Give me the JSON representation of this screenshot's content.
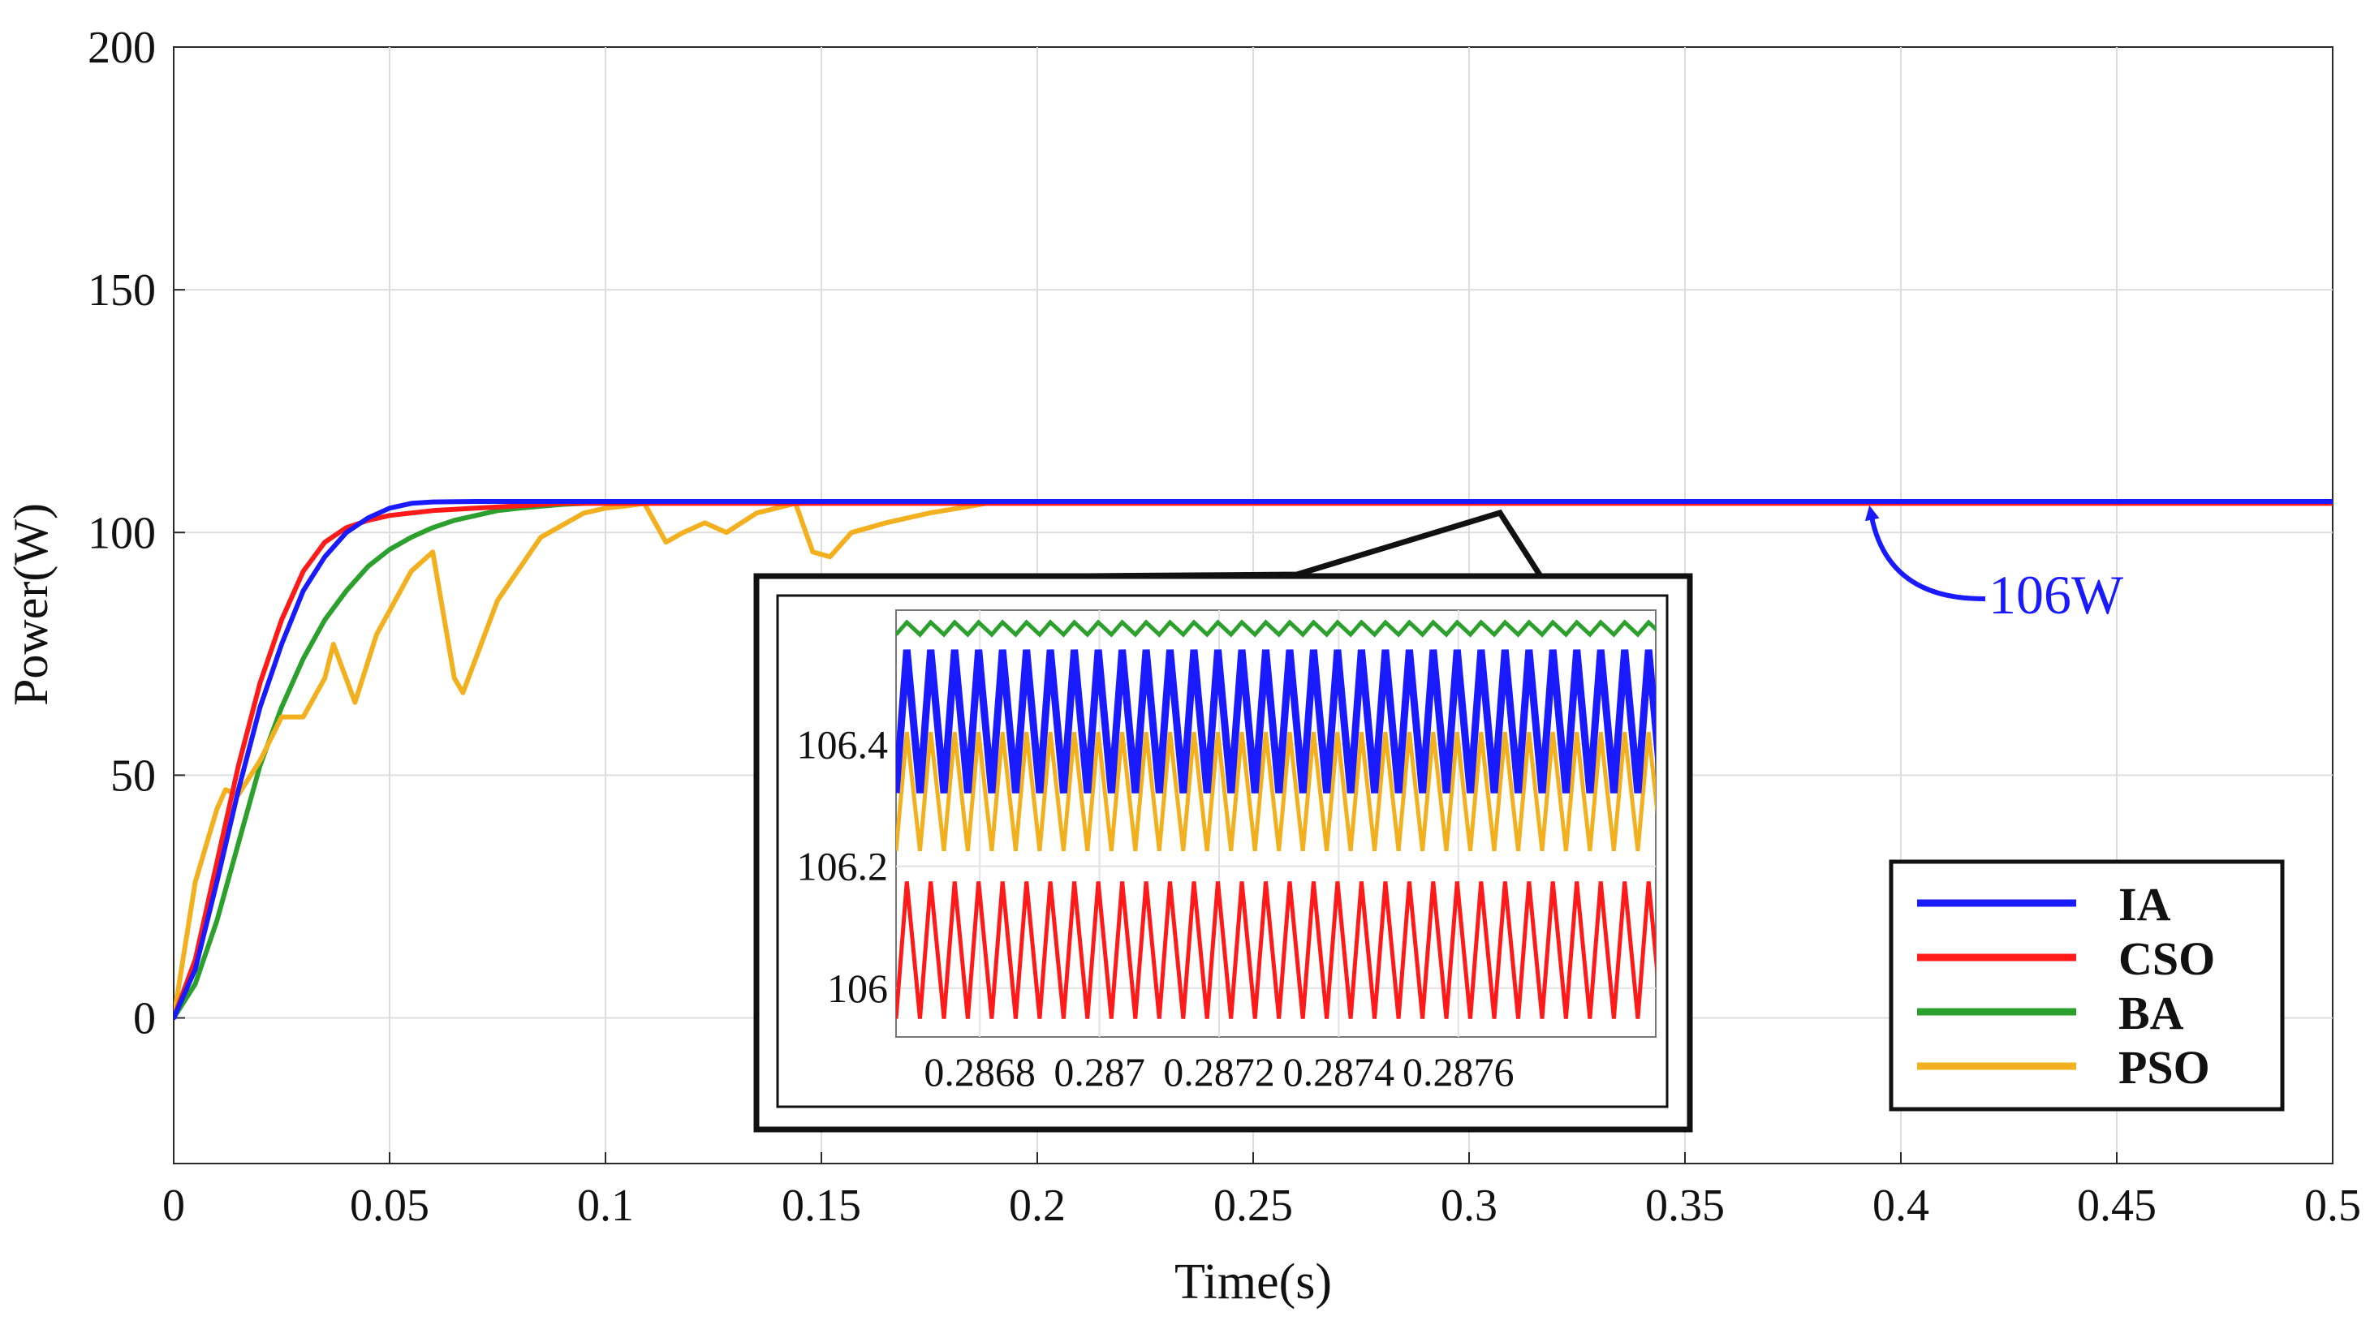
{
  "chart_data": {
    "type": "line",
    "xlabel": "Time(s)",
    "ylabel": "Power(W)",
    "xlim": [
      0,
      0.5
    ],
    "ylim": [
      -30,
      200
    ],
    "xticks": [
      0,
      0.05,
      0.1,
      0.15,
      0.2,
      0.25,
      0.3,
      0.35,
      0.4,
      0.45,
      0.5
    ],
    "xtick_labels": [
      "0",
      "0.05",
      "0.1",
      "0.15",
      "0.2",
      "0.25",
      "0.3",
      "0.35",
      "0.4",
      "0.45",
      "0.5"
    ],
    "yticks": [
      0,
      50,
      100,
      150,
      200
    ],
    "ytick_labels": [
      "0",
      "50",
      "100",
      "150",
      "200"
    ],
    "grid": true,
    "legend_position": "bottom-right",
    "series": [
      {
        "name": "IA",
        "color": "#1a1aff",
        "x": [
          0,
          0.005,
          0.01,
          0.015,
          0.02,
          0.025,
          0.03,
          0.035,
          0.04,
          0.045,
          0.05,
          0.055,
          0.06,
          0.07,
          0.08,
          0.1,
          0.15,
          0.2,
          0.3,
          0.4,
          0.5
        ],
        "y": [
          0,
          10,
          28,
          47,
          64,
          77,
          88,
          95,
          100,
          103,
          105,
          106,
          106.3,
          106.4,
          106.4,
          106.4,
          106.4,
          106.4,
          106.4,
          106.4,
          106.4
        ]
      },
      {
        "name": "CSO",
        "color": "#ff1a1a",
        "x": [
          0,
          0.005,
          0.01,
          0.015,
          0.02,
          0.025,
          0.03,
          0.035,
          0.04,
          0.045,
          0.05,
          0.06,
          0.07,
          0.08,
          0.09,
          0.1,
          0.15,
          0.2,
          0.3,
          0.4,
          0.5
        ],
        "y": [
          0,
          12,
          32,
          52,
          69,
          82,
          92,
          98,
          101,
          102.5,
          103.5,
          104.5,
          105,
          105.5,
          106,
          106,
          106,
          106,
          106,
          106,
          106
        ]
      },
      {
        "name": "BA",
        "color": "#2ca02c",
        "x": [
          0,
          0.005,
          0.01,
          0.015,
          0.02,
          0.025,
          0.03,
          0.035,
          0.04,
          0.045,
          0.05,
          0.055,
          0.06,
          0.065,
          0.07,
          0.075,
          0.08,
          0.09,
          0.1,
          0.15,
          0.2,
          0.3,
          0.4,
          0.5
        ],
        "y": [
          0,
          7,
          20,
          36,
          52,
          64,
          74,
          82,
          88,
          93,
          96.5,
          99,
          101,
          102.5,
          103.5,
          104.5,
          105,
          105.8,
          106.2,
          106.4,
          106.4,
          106.4,
          106.4,
          106.4
        ]
      },
      {
        "name": "PSO",
        "color": "#f2b01e",
        "x": [
          0,
          0.005,
          0.01,
          0.012,
          0.015,
          0.02,
          0.025,
          0.03,
          0.035,
          0.037,
          0.042,
          0.047,
          0.055,
          0.06,
          0.065,
          0.067,
          0.075,
          0.085,
          0.095,
          0.1,
          0.105,
          0.109,
          0.114,
          0.118,
          0.123,
          0.128,
          0.135,
          0.144,
          0.148,
          0.152,
          0.157,
          0.165,
          0.175,
          0.185,
          0.19,
          0.2,
          0.3,
          0.4,
          0.5
        ],
        "y": [
          0,
          28,
          43,
          47,
          46,
          53,
          62,
          62,
          70,
          77,
          65,
          79,
          92,
          96,
          70,
          67,
          86,
          99,
          104,
          105,
          105.5,
          106,
          98,
          100,
          102,
          100,
          104,
          106,
          96,
          95,
          100,
          102,
          104,
          105.5,
          106.3,
          106.4,
          106.4,
          106.4,
          106.4
        ]
      }
    ],
    "annotations": [
      {
        "text": "106W",
        "color": "#1a1aff",
        "points_to_x": 0.395,
        "points_to_y": 106.4
      }
    ],
    "inset": {
      "xlim": [
        0.28666,
        0.28793
      ],
      "ylim": [
        105.92,
        106.62
      ],
      "xticks": [
        0.2868,
        0.287,
        0.2872,
        0.2874,
        0.2876
      ],
      "xtick_labels": [
        "0.2868",
        "0.287",
        "0.2872",
        "0.2874",
        "0.2876"
      ],
      "yticks": [
        106,
        106.2,
        106.4
      ],
      "ytick_labels": [
        "106",
        "106.2",
        "106.4"
      ],
      "grid": true,
      "zoom_center_x": 0.3085,
      "zoom_center_y": 106.4,
      "series": [
        {
          "name": "IA",
          "color": "#1a1aff",
          "min": 106.32,
          "max": 106.555,
          "period": 4e-05,
          "width": "thick"
        },
        {
          "name": "CSO",
          "color": "#ff1a1a",
          "min": 105.95,
          "max": 106.175,
          "period": 4e-05,
          "width": "thin"
        },
        {
          "name": "BA",
          "color": "#2ca02c",
          "min": 106.58,
          "max": 106.6,
          "period": 4e-05,
          "width": "thin"
        },
        {
          "name": "PSO",
          "color": "#f2b01e",
          "min": 106.225,
          "max": 106.42,
          "period": 4e-05,
          "width": "thin"
        }
      ]
    }
  }
}
